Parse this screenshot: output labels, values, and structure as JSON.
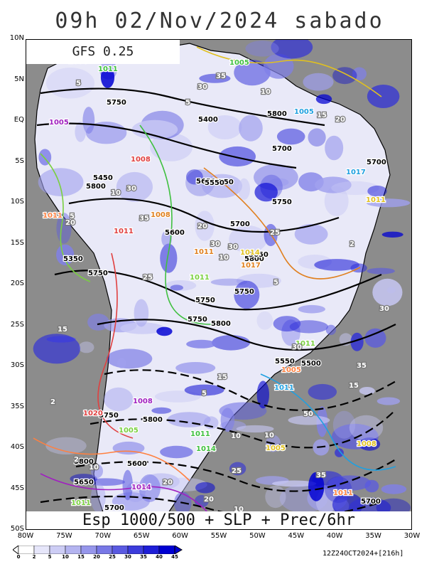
{
  "title": "09h 02/Nov/2024 sabado",
  "model": "GFS 0.25",
  "product": "Esp 1000/500 + SLP + Prec/6hr",
  "run_info": "12Z24OCT2024+[216h]",
  "y_axis": [
    "10N",
    "5N",
    "EQ",
    "5S",
    "10S",
    "15S",
    "20S",
    "25S",
    "30S",
    "35S",
    "40S",
    "45S",
    "50S"
  ],
  "x_axis": [
    "80W",
    "75W",
    "70W",
    "65W",
    "60W",
    "55W",
    "50W",
    "45W",
    "40W",
    "35W",
    "30W"
  ],
  "colorbar": {
    "levels": [
      "0",
      "2",
      "5",
      "10",
      "15",
      "20",
      "25",
      "30",
      "35",
      "40",
      "45"
    ],
    "colors": [
      "#ffffff",
      "#e6e6fa",
      "#cdcdf5",
      "#b4b4f0",
      "#9696eb",
      "#7878e6",
      "#5a5ae1",
      "#3c3cdc",
      "#1e1ed7",
      "#0000d2"
    ]
  },
  "colors": {
    "ocean": "#8c8c8c",
    "land": "#e6e6f7",
    "thickness_contour": "#000000",
    "slp_contour": "#e0c020"
  },
  "labels": {
    "thickness": [
      "5800",
      "5800",
      "5750",
      "5800",
      "5800",
      "5800",
      "5800",
      "5750",
      "5700",
      "5750",
      "5750",
      "5700",
      "5750",
      "5700",
      "5750",
      "5750",
      "5700",
      "5650",
      "5700",
      "5750",
      "5600",
      "5650",
      "5600",
      "5550",
      "5650",
      "5500",
      "5450",
      "5400",
      "5350",
      "5550"
    ],
    "slp": [
      "1011",
      "1011",
      "1011",
      "1011",
      "1008",
      "1005",
      "1008",
      "1011",
      "1008",
      "1011",
      "1005",
      "1008",
      "1011",
      "1011",
      "1014",
      "1011",
      "1014",
      "1011",
      "1014",
      "1017",
      "1020",
      "1017",
      "1005",
      "1005",
      "1005",
      "1005",
      "1011",
      "1008"
    ],
    "precip": [
      "10",
      "20",
      "35",
      "25",
      "5",
      "30",
      "15",
      "35",
      "10",
      "5",
      "30",
      "2",
      "5",
      "20",
      "30",
      "35",
      "2",
      "5",
      "10",
      "15",
      "20",
      "25",
      "30",
      "10",
      "5",
      "35",
      "20",
      "2",
      "15",
      "35",
      "10",
      "10",
      "30",
      "30",
      "25",
      "50",
      "10",
      "15",
      "20"
    ]
  }
}
